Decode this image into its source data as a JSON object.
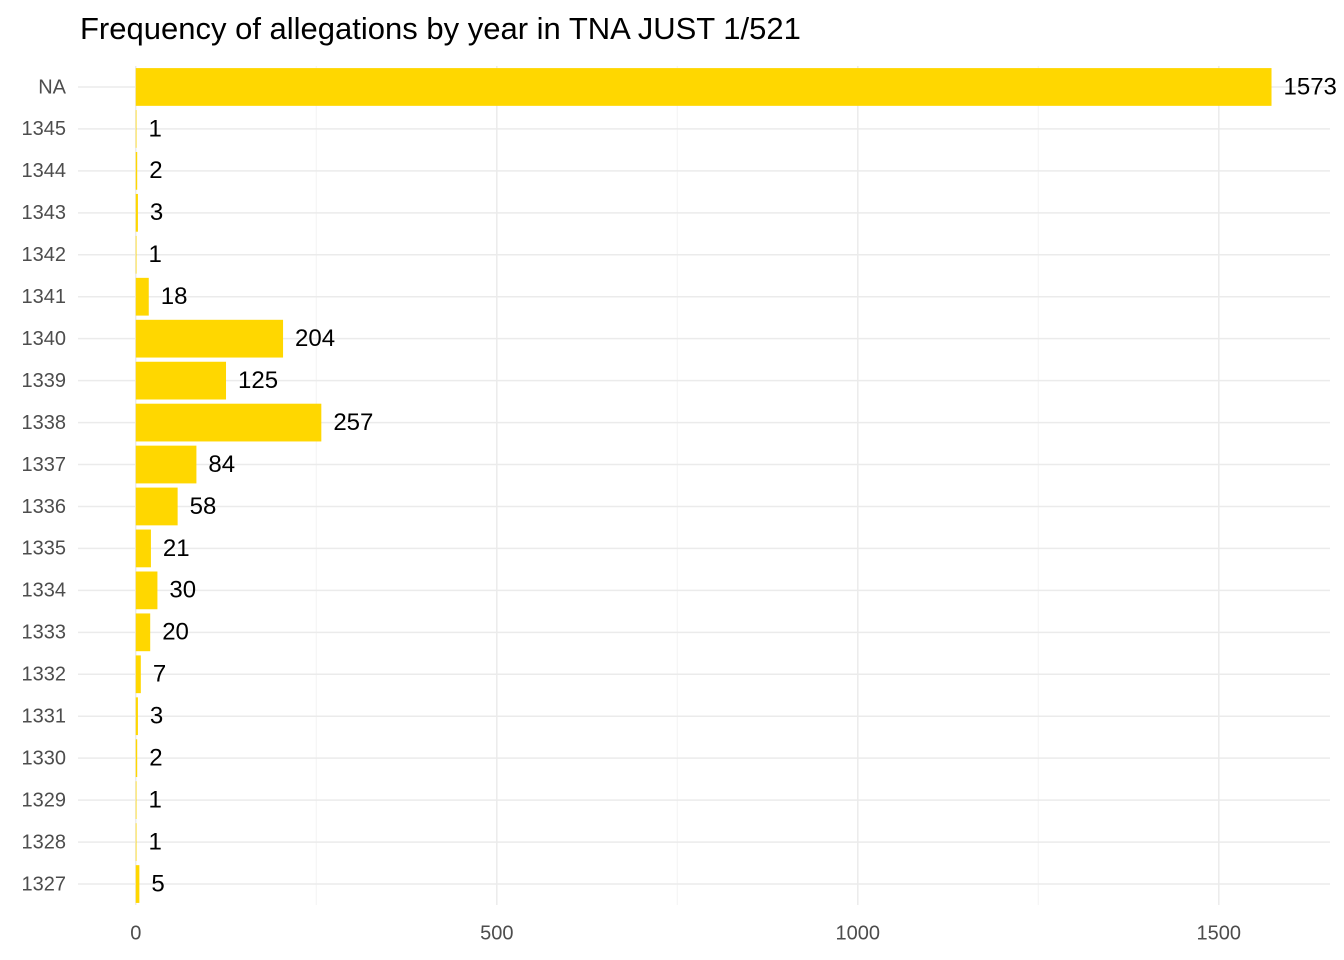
{
  "chart_data": {
    "type": "bar",
    "orientation": "horizontal",
    "title": "Frequency of allegations by year in TNA JUST 1/521",
    "categories": [
      "NA",
      "1345",
      "1344",
      "1343",
      "1342",
      "1341",
      "1340",
      "1339",
      "1338",
      "1337",
      "1336",
      "1335",
      "1334",
      "1333",
      "1332",
      "1331",
      "1330",
      "1329",
      "1328",
      "1327"
    ],
    "values": [
      1573,
      1,
      2,
      3,
      1,
      18,
      204,
      125,
      257,
      84,
      58,
      21,
      30,
      20,
      7,
      3,
      2,
      1,
      1,
      5
    ],
    "color": "#ffd700",
    "xlim": [
      -80,
      1654
    ],
    "xticks": [
      0,
      500,
      1000,
      1500
    ],
    "xminor": [
      250,
      750,
      1250
    ],
    "grid": true
  }
}
